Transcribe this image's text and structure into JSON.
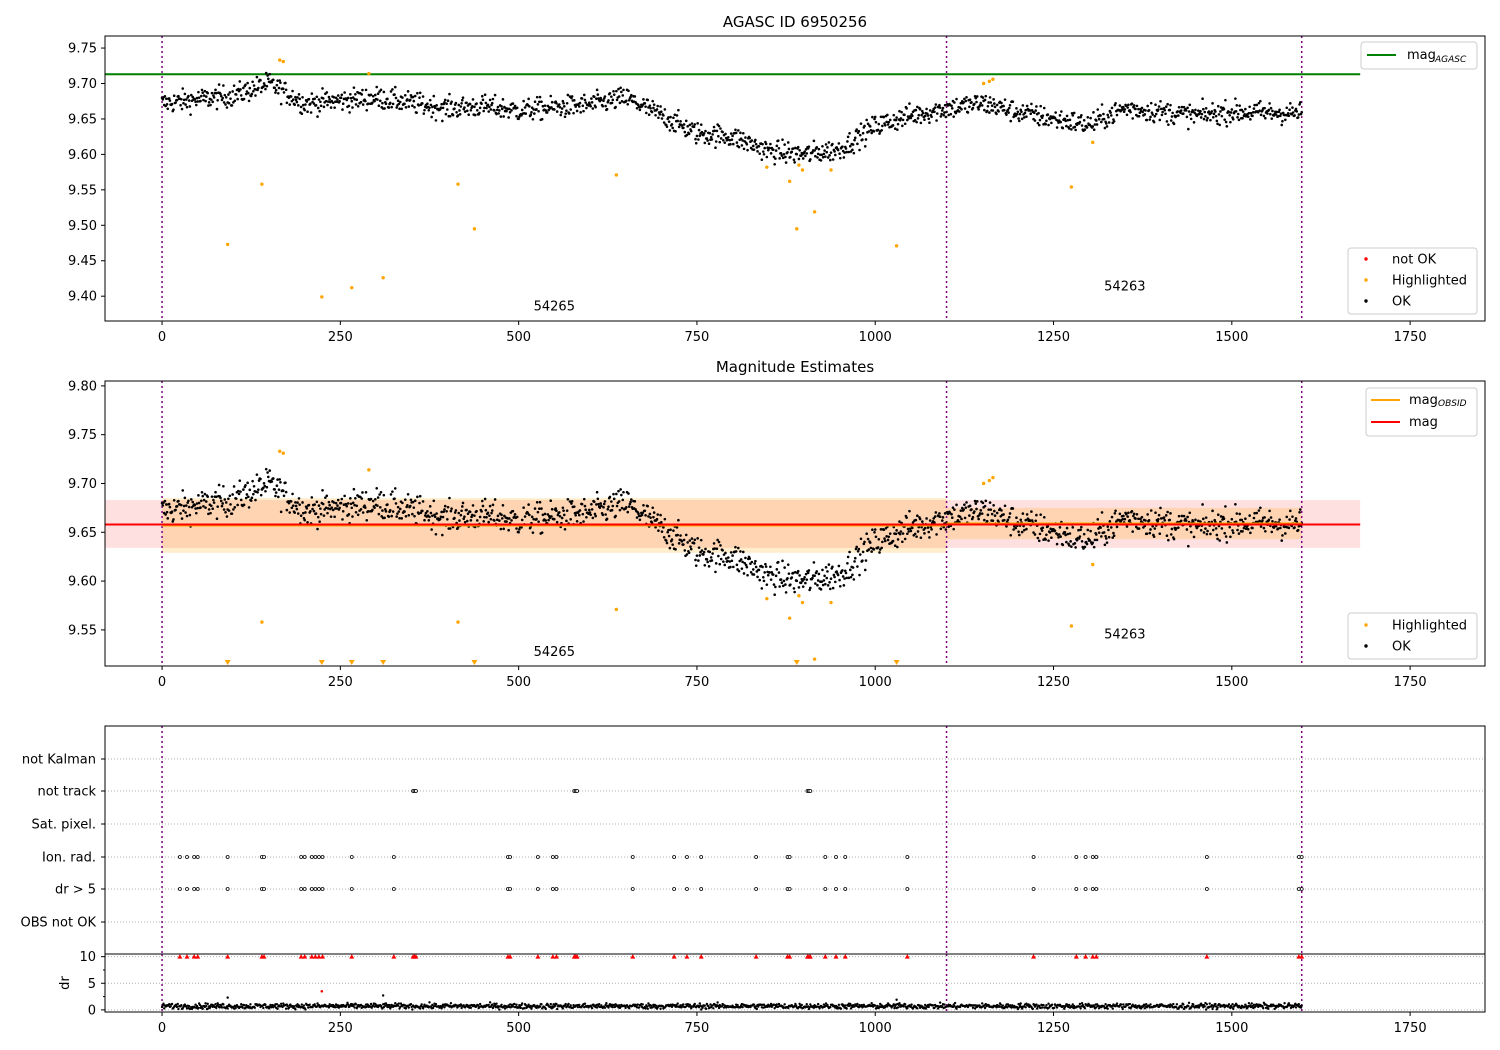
{
  "chart_data": [
    {
      "type": "scatter",
      "title": "AGASC ID 6950256",
      "xlim": [
        -80,
        1855
      ],
      "ylim": [
        9.365,
        9.767
      ],
      "xticks": [
        0,
        250,
        500,
        750,
        1000,
        1250,
        1500,
        1750
      ],
      "yticks": [
        9.4,
        9.45,
        9.5,
        9.55,
        9.6,
        9.65,
        9.7,
        9.75
      ],
      "ytick_labels": [
        "9.40",
        "9.45",
        "9.50",
        "9.55",
        "9.60",
        "9.65",
        "9.70",
        "9.75"
      ],
      "obsid_boundaries": [
        0,
        1100,
        1598
      ],
      "obsid_labels": [
        {
          "text": "54265",
          "x": 550,
          "y": 9.38
        },
        {
          "text": "54263",
          "x": 1350,
          "y": 9.408
        }
      ],
      "reference_line": {
        "name": "mag_AGASC",
        "value": 9.713,
        "x_end": 1680,
        "color": "#008000"
      },
      "legend_top": [
        {
          "label": "mag",
          "sub": "AGASC",
          "color": "#008000"
        }
      ],
      "legend_bottom": [
        {
          "label": "not OK",
          "color": "#ff0000"
        },
        {
          "label": "Highlighted",
          "color": "#ffa500"
        },
        {
          "label": "OK",
          "color": "#000000"
        }
      ],
      "highlighted_points": [
        [
          92,
          9.473
        ],
        [
          140,
          9.558
        ],
        [
          165,
          9.733
        ],
        [
          170,
          9.731
        ],
        [
          224,
          9.399
        ],
        [
          266,
          9.412
        ],
        [
          290,
          9.714
        ],
        [
          310,
          9.426
        ],
        [
          415,
          9.558
        ],
        [
          438,
          9.495
        ],
        [
          637,
          9.571
        ],
        [
          848,
          9.582
        ],
        [
          880,
          9.562
        ],
        [
          890,
          9.495
        ],
        [
          893,
          9.585
        ],
        [
          898,
          9.578
        ],
        [
          915,
          9.519
        ],
        [
          938,
          9.578
        ],
        [
          1030,
          9.471
        ],
        [
          1152,
          9.7
        ],
        [
          1160,
          9.703
        ],
        [
          1165,
          9.706
        ],
        [
          1275,
          9.554
        ],
        [
          1305,
          9.617
        ]
      ],
      "ok_series_trend": {
        "x": [
          0,
          100,
          150,
          200,
          300,
          400,
          450,
          500,
          600,
          650,
          700,
          750,
          800,
          850,
          900,
          950,
          1000,
          1050,
          1100,
          1150,
          1200,
          1250,
          1300,
          1350,
          1400,
          1450,
          1500,
          1598
        ],
        "y": [
          9.672,
          9.683,
          9.7,
          9.672,
          9.68,
          9.665,
          9.668,
          9.662,
          9.67,
          9.68,
          9.655,
          9.63,
          9.625,
          9.605,
          9.6,
          9.607,
          9.64,
          9.655,
          9.665,
          9.672,
          9.66,
          9.65,
          9.642,
          9.665,
          9.66,
          9.655,
          9.66,
          9.658
        ],
        "scatter": 0.011
      }
    },
    {
      "type": "scatter",
      "title": "Magnitude Estimates",
      "xlim": [
        -80,
        1855
      ],
      "ylim": [
        9.513,
        9.805
      ],
      "xticks": [
        0,
        250,
        500,
        750,
        1000,
        1250,
        1500,
        1750
      ],
      "yticks": [
        9.55,
        9.6,
        9.65,
        9.7,
        9.75,
        9.8
      ],
      "ytick_labels": [
        "9.55",
        "9.60",
        "9.65",
        "9.70",
        "9.75",
        "9.80"
      ],
      "obsid_boundaries": [
        0,
        1100,
        1598
      ],
      "obsid_labels": [
        {
          "text": "54265",
          "x": 550,
          "y": 9.523
        },
        {
          "text": "54263",
          "x": 1350,
          "y": 9.541
        }
      ],
      "mag_line": {
        "name": "mag",
        "value": 9.658,
        "band": [
          9.634,
          9.683
        ],
        "x_end": 1680,
        "color": "#ff0000"
      },
      "mag_obsid": [
        {
          "obsid": "54265",
          "x": [
            0,
            1100
          ],
          "value": 9.657,
          "band": [
            9.629,
            9.685
          ]
        },
        {
          "obsid": "54263",
          "x": [
            1100,
            1598
          ],
          "value": 9.659,
          "band": [
            9.643,
            9.675
          ]
        }
      ],
      "legend_top": [
        {
          "label": "mag",
          "sub": "OBSID",
          "color": "#ffa500"
        },
        {
          "label": "mag",
          "sub": "",
          "color": "#ff0000"
        }
      ],
      "legend_bottom": [
        {
          "label": "Highlighted",
          "color": "#ffa500"
        },
        {
          "label": "OK",
          "color": "#000000"
        }
      ],
      "highlighted_points": [
        [
          140,
          9.558
        ],
        [
          165,
          9.733
        ],
        [
          170,
          9.731
        ],
        [
          290,
          9.714
        ],
        [
          415,
          9.558
        ],
        [
          637,
          9.571
        ],
        [
          848,
          9.582
        ],
        [
          880,
          9.562
        ],
        [
          893,
          9.585
        ],
        [
          898,
          9.578
        ],
        [
          915,
          9.52
        ],
        [
          938,
          9.578
        ],
        [
          1152,
          9.7
        ],
        [
          1160,
          9.703
        ],
        [
          1165,
          9.706
        ],
        [
          1275,
          9.554
        ],
        [
          1305,
          9.617
        ]
      ],
      "below_range_markers": [
        92,
        224,
        266,
        310,
        438,
        890,
        1030
      ]
    },
    {
      "type": "scatter",
      "title": "",
      "xlim": [
        -80,
        1855
      ],
      "categories": [
        "not Kalman",
        "not track",
        "Sat. pixel.",
        "Ion. rad.",
        "dr > 5",
        "OBS not OK"
      ],
      "obsid_boundaries": [
        0,
        1100,
        1598
      ],
      "flags": {
        "not track": [
          352,
          354,
          356,
          578,
          580,
          582,
          905,
          907,
          909
        ],
        "Ion. rad.": [
          25,
          35,
          45,
          50,
          92,
          140,
          143,
          195,
          200,
          210,
          215,
          220,
          225,
          266,
          325,
          485,
          488,
          527,
          548,
          553,
          660,
          718,
          736,
          756,
          833,
          877,
          880,
          930,
          945,
          958,
          1045,
          1222,
          1282,
          1295,
          1305,
          1310,
          1465,
          1594,
          1598
        ],
        "dr > 5": [
          25,
          35,
          45,
          50,
          92,
          140,
          143,
          195,
          200,
          210,
          215,
          220,
          225,
          266,
          325,
          485,
          488,
          527,
          548,
          553,
          660,
          718,
          736,
          756,
          833,
          877,
          880,
          930,
          945,
          958,
          1045,
          1222,
          1282,
          1295,
          1305,
          1310,
          1465,
          1594,
          1598
        ]
      },
      "dr_panel": {
        "ylabel": "dr",
        "ylim": [
          -0.4,
          10.5
        ],
        "yticks": [
          0,
          5,
          10
        ],
        "ytick_labels": [
          "0",
          "5",
          "10"
        ],
        "threshold": 5,
        "clipped_at": 10,
        "clipped_points_red": [
          25,
          35,
          45,
          50,
          92,
          140,
          143,
          195,
          200,
          210,
          215,
          220,
          225,
          266,
          325,
          352,
          354,
          356,
          485,
          488,
          527,
          548,
          553,
          578,
          580,
          582,
          660,
          718,
          736,
          756,
          833,
          877,
          880,
          905,
          907,
          909,
          930,
          945,
          958,
          1045,
          1222,
          1282,
          1295,
          1305,
          1310,
          1465,
          1594,
          1598
        ],
        "red_points": [
          [
            224,
            3.5
          ]
        ],
        "typical_dr": 0.7
      }
    }
  ]
}
